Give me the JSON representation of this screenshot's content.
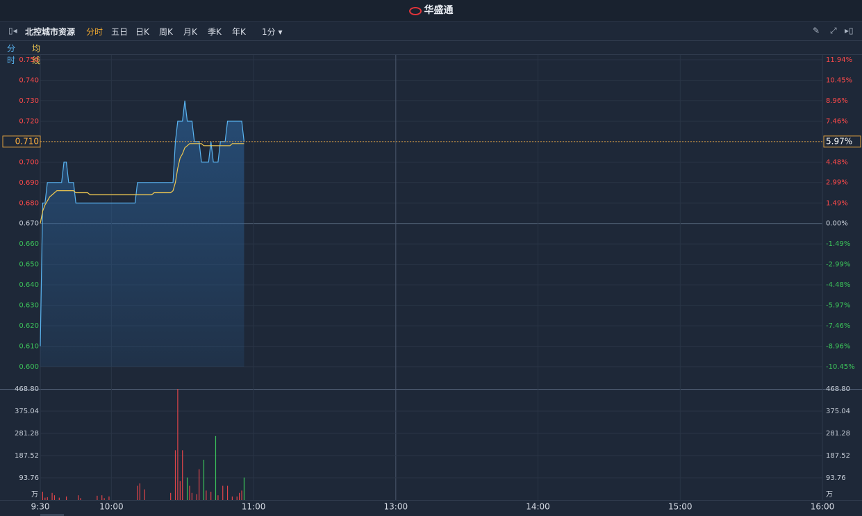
{
  "header": {
    "logo": "华盛通"
  },
  "toolbar": {
    "stock": "北控城市资源",
    "tabs": [
      "分时",
      "五日",
      "日K",
      "周K",
      "月K",
      "季K",
      "年K"
    ],
    "active_tab": 0,
    "interval": "1分"
  },
  "chart_data": [
    {
      "type": "line",
      "x": [
        0,
        1,
        2,
        3,
        4,
        5,
        6,
        7,
        8,
        9,
        10,
        11,
        12,
        13,
        14,
        15,
        16,
        17,
        18,
        19,
        20,
        21,
        22,
        23,
        24,
        25,
        26,
        27,
        28,
        29,
        30,
        31,
        32,
        33,
        34,
        35,
        36,
        37,
        38,
        39,
        40,
        41,
        42,
        43,
        44,
        45,
        46,
        47,
        48,
        49,
        50,
        51,
        52,
        53,
        54,
        55,
        56,
        57,
        58,
        59,
        60,
        61,
        62,
        63,
        64,
        65,
        66,
        67,
        68,
        69,
        70,
        71,
        72,
        73,
        74,
        75,
        76,
        77,
        78,
        79,
        80,
        81,
        82,
        83,
        84,
        85,
        86
      ],
      "series": [
        {
          "name": "分时",
          "color": "#5ab4f0",
          "values": [
            0.61,
            0.68,
            0.68,
            0.69,
            0.69,
            0.69,
            0.69,
            0.69,
            0.69,
            0.69,
            0.7,
            0.7,
            0.69,
            0.69,
            0.69,
            0.68,
            0.68,
            0.68,
            0.68,
            0.68,
            0.68,
            0.68,
            0.68,
            0.68,
            0.68,
            0.68,
            0.68,
            0.68,
            0.68,
            0.68,
            0.68,
            0.68,
            0.68,
            0.68,
            0.68,
            0.68,
            0.68,
            0.68,
            0.68,
            0.68,
            0.68,
            0.69,
            0.69,
            0.69,
            0.69,
            0.69,
            0.69,
            0.69,
            0.69,
            0.69,
            0.69,
            0.69,
            0.69,
            0.69,
            0.69,
            0.69,
            0.69,
            0.71,
            0.72,
            0.72,
            0.72,
            0.73,
            0.72,
            0.72,
            0.72,
            0.71,
            0.71,
            0.71,
            0.7,
            0.7,
            0.7,
            0.7,
            0.71,
            0.7,
            0.7,
            0.7,
            0.71,
            0.71,
            0.71,
            0.72,
            0.72,
            0.72,
            0.72,
            0.72,
            0.72,
            0.72,
            0.71
          ]
        },
        {
          "name": "均线",
          "color": "#f0c850",
          "values": [
            0.67,
            0.676,
            0.679,
            0.681,
            0.683,
            0.684,
            0.685,
            0.686,
            0.686,
            0.686,
            0.686,
            0.686,
            0.686,
            0.686,
            0.686,
            0.685,
            0.685,
            0.685,
            0.685,
            0.685,
            0.685,
            0.684,
            0.684,
            0.684,
            0.684,
            0.684,
            0.684,
            0.684,
            0.684,
            0.684,
            0.684,
            0.684,
            0.684,
            0.684,
            0.684,
            0.684,
            0.684,
            0.684,
            0.684,
            0.684,
            0.684,
            0.684,
            0.684,
            0.684,
            0.684,
            0.684,
            0.684,
            0.684,
            0.685,
            0.685,
            0.685,
            0.685,
            0.685,
            0.685,
            0.685,
            0.685,
            0.686,
            0.69,
            0.697,
            0.702,
            0.704,
            0.707,
            0.708,
            0.709,
            0.709,
            0.709,
            0.709,
            0.709,
            0.709,
            0.708,
            0.708,
            0.708,
            0.708,
            0.708,
            0.708,
            0.708,
            0.708,
            0.708,
            0.708,
            0.708,
            0.708,
            0.709,
            0.709,
            0.709,
            0.709,
            0.709,
            0.709
          ]
        }
      ],
      "xlim": [
        0,
        330
      ],
      "ylim": [
        0.6,
        0.75
      ],
      "yticks": [
        {
          "value": 0.6,
          "label": "0.600"
        },
        {
          "value": 0.61,
          "label": "0.610"
        },
        {
          "value": 0.62,
          "label": "0.620"
        },
        {
          "value": 0.63,
          "label": "0.630"
        },
        {
          "value": 0.64,
          "label": "0.640"
        },
        {
          "value": 0.65,
          "label": "0.650"
        },
        {
          "value": 0.66,
          "label": "0.660"
        },
        {
          "value": 0.67,
          "label": "0.670"
        },
        {
          "value": 0.68,
          "label": "0.680"
        },
        {
          "value": 0.69,
          "label": "0.690"
        },
        {
          "value": 0.7,
          "label": "0.700"
        },
        {
          "value": 0.71,
          "label": "0.710"
        },
        {
          "value": 0.72,
          "label": "0.720"
        },
        {
          "value": 0.73,
          "label": "0.730"
        },
        {
          "value": 0.74,
          "label": "0.740"
        },
        {
          "value": 0.75,
          "label": "0.750"
        }
      ],
      "y2lim": [
        -10.45,
        11.94
      ],
      "y2ticks": [
        {
          "value": -10.45,
          "label": "-10.45%"
        },
        {
          "value": -8.96,
          "label": "-8.96%"
        },
        {
          "value": -7.46,
          "label": "-7.46%"
        },
        {
          "value": -5.97,
          "label": "-5.97%"
        },
        {
          "value": -4.48,
          "label": "-4.48%"
        },
        {
          "value": -2.99,
          "label": "-2.99%"
        },
        {
          "value": -1.49,
          "label": "-1.49%"
        },
        {
          "value": 0,
          "label": "0.00%"
        },
        {
          "value": 1.49,
          "label": "1.49%"
        },
        {
          "value": 2.99,
          "label": "2.99%"
        },
        {
          "value": 4.48,
          "label": "4.48%"
        },
        {
          "value": 5.97,
          "label": "5.97%"
        },
        {
          "value": 7.46,
          "label": "7.46%"
        },
        {
          "value": 8.96,
          "label": "8.96%"
        },
        {
          "value": 10.45,
          "label": "10.45%"
        },
        {
          "value": 11.94,
          "label": "11.94%"
        }
      ],
      "last_price": {
        "value": 0.71,
        "label": "0.710"
      },
      "last_change": {
        "value": 5.97,
        "label": "5.97%"
      },
      "grid": true
    },
    {
      "type": "bar",
      "unit": "万",
      "x": [
        1,
        2,
        3,
        5,
        6,
        8,
        11,
        16,
        17,
        24,
        26,
        27,
        29,
        41,
        42,
        44,
        55,
        57,
        58,
        59,
        60,
        62,
        63,
        64,
        66,
        67,
        69,
        70,
        72,
        74,
        75,
        77,
        79,
        81,
        83,
        84,
        85,
        86
      ],
      "values": [
        35,
        10,
        12,
        30,
        20,
        10,
        15,
        20,
        8,
        18,
        20,
        8,
        15,
        60,
        70,
        45,
        30,
        210,
        468.8,
        80,
        210,
        95,
        60,
        30,
        25,
        130,
        170,
        40,
        35,
        270,
        20,
        60,
        60,
        15,
        15,
        30,
        40,
        95
      ],
      "colors": [
        "#e0454a",
        "#e0454a",
        "#e0454a",
        "#e0454a",
        "#e0454a",
        "#e0454a",
        "#e0454a",
        "#e0454a",
        "#e0454a",
        "#e0454a",
        "#e0454a",
        "#e0454a",
        "#e0454a",
        "#e0454a",
        "#e0454a",
        "#e0454a",
        "#e0454a",
        "#e0454a",
        "#e0454a",
        "#e0454a",
        "#e0454a",
        "#3cc35a",
        "#e0454a",
        "#e0454a",
        "#e0454a",
        "#e0454a",
        "#3cc35a",
        "#e0454a",
        "#e0454a",
        "#3cc35a",
        "#e0454a",
        "#e0454a",
        "#e0454a",
        "#e0454a",
        "#e0454a",
        "#e0454a",
        "#e0454a",
        "#3cc35a"
      ],
      "xlim": [
        0,
        330
      ],
      "xticks": [
        {
          "value": 0,
          "label": "9:30"
        },
        {
          "value": 30,
          "label": "10:00"
        },
        {
          "value": 90,
          "label": "11:00"
        },
        {
          "value": 150,
          "label": "13:00"
        },
        {
          "value": 210,
          "label": "14:00"
        },
        {
          "value": 270,
          "label": "15:00"
        },
        {
          "value": 330,
          "label": "16:00"
        }
      ],
      "ylim": [
        0,
        468.8
      ],
      "yticks": [
        93.76,
        187.52,
        281.28,
        375.04,
        {
          "value": 468.8,
          "label": "468.80"
        }
      ],
      "grid": true
    }
  ]
}
